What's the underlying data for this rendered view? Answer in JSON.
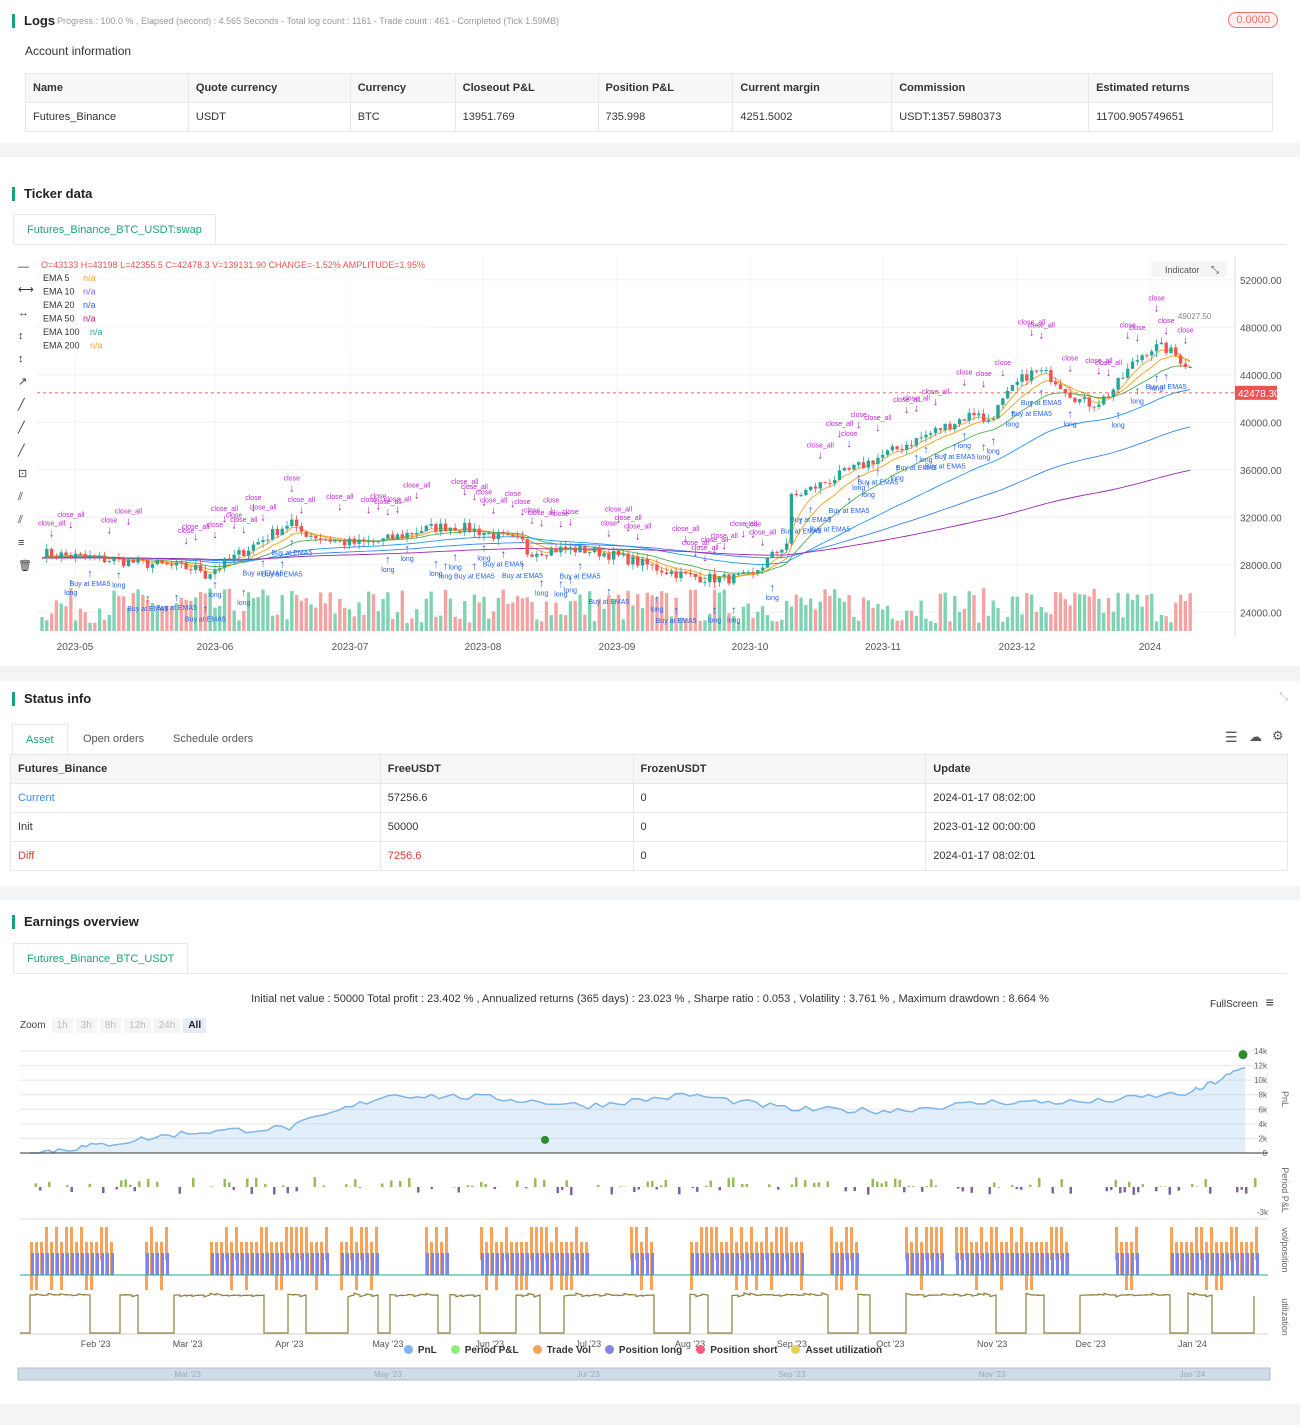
{
  "logs": {
    "title": "Logs",
    "progress": "Progress : 100.0 % , Elapsed (second) : 4.565  Seconds  - Total log count : 1161 - Trade count : 461 - Completed (Tick 1.59MB)",
    "badge": "0.0000",
    "account_title": "Account information",
    "headers": [
      "Name",
      "Quote currency",
      "Currency",
      "Closeout P&L",
      "Position P&L",
      "Current margin",
      "Commission",
      "Estimated returns"
    ],
    "row": [
      "Futures_Binance",
      "USDT",
      "BTC",
      "13951.769",
      "735.998",
      "4251.5002",
      "USDT:1357.5980373",
      "11700.905749651"
    ]
  },
  "ticker": {
    "title": "Ticker data",
    "tab": "Futures_Binance_BTC_USDT:swap",
    "ohlc": "O=43133 H=43198 L=42355.5 C=42478.3 V=139131.90 CHANGE=-1.52% AMPLITUDE=1.95%",
    "emas": [
      {
        "name": "EMA 5",
        "val": "n/a",
        "color": "#f7a336"
      },
      {
        "name": "EMA 10",
        "val": "n/a",
        "color": "#7b68ee"
      },
      {
        "name": "EMA 20",
        "val": "n/a",
        "color": "#2962ff"
      },
      {
        "name": "EMA 50",
        "val": "n/a",
        "color": "#c0147a"
      },
      {
        "name": "EMA 100",
        "val": "n/a",
        "color": "#26a69a"
      },
      {
        "name": "EMA 200",
        "val": "n/a",
        "color": "#f7a336"
      }
    ],
    "indicator_btn": "Indicator",
    "price_tag": "42478.30",
    "y_ticks": [
      "52000.00",
      "48000.00",
      "44000.00",
      "40000.00",
      "36000.00",
      "32000.00",
      "28000.00",
      "24000.00"
    ],
    "x_ticks": [
      "2023-05",
      "2023-06",
      "2023-07",
      "2023-08",
      "2023-09",
      "2023-10",
      "2023-11",
      "2023-12",
      "2024"
    ],
    "marker_labels": {
      "close": "close",
      "close_all": "close_all",
      "long": "long",
      "buy": "Buy at EMA5",
      "price_note": "49027.50"
    }
  },
  "status": {
    "title": "Status info",
    "tabs": [
      "Asset",
      "Open orders",
      "Schedule orders"
    ],
    "headers": [
      "Futures_Binance",
      "FreeUSDT",
      "FrozenUSDT",
      "Update"
    ],
    "rows": [
      [
        "Current",
        "57256.6",
        "0",
        "2024-01-17 08:02:00"
      ],
      [
        "Init",
        "50000",
        "0",
        "2023-01-12 00:00:00"
      ],
      [
        "Diff",
        "7256.6",
        "0",
        "2024-01-17 08:02:01"
      ]
    ]
  },
  "earnings": {
    "title": "Earnings overview",
    "tab": "Futures_Binance_BTC_USDT",
    "summary": "Initial net value : 50000 Total profit : 23.402 % , Annualized returns (365 days) : 23.023 % , Sharpe ratio : 0.053 , Volatility : 3.761 % , Maximum drawdown : 8.664 %",
    "fullscreen": "FullScreen",
    "zoom_label": "Zoom",
    "zoom_opts": [
      "1h",
      "3h",
      "8h",
      "12h",
      "24h",
      "All"
    ],
    "pnl_ticks": [
      "14k",
      "12k",
      "10k",
      "8k",
      "6k",
      "4k",
      "2k",
      "0"
    ],
    "ppl_tick": "-3k",
    "axis_labels": [
      "PnL",
      "Period P&L",
      "vol/position",
      "utilization"
    ],
    "x_ticks": [
      "Feb '23",
      "Mar '23",
      "Apr '23",
      "May '23",
      "Jun '23",
      "Jul '23",
      "Aug '23",
      "Sep '23",
      "Oct '23",
      "Nov '23",
      "Dec '23",
      "Jan '24"
    ],
    "nav_ticks": [
      "Mar '23",
      "May '23",
      "Jul '23",
      "Sep '23",
      "Nov '23",
      "Jan '24"
    ],
    "legend": [
      {
        "name": "PnL",
        "color": "#7cb5ec"
      },
      {
        "name": "Period P&L",
        "color": "#90ed7d"
      },
      {
        "name": "Trade Vol",
        "color": "#f7a35c"
      },
      {
        "name": "Position long",
        "color": "#8085e9"
      },
      {
        "name": "Position short",
        "color": "#f15c80"
      },
      {
        "name": "Asset utilization",
        "color": "#e4d354"
      }
    ]
  },
  "chart_data": {
    "type": "line",
    "title": "",
    "xlabel": "",
    "ylabel": "PnL",
    "x": [
      "2023-01-12",
      "2023-02-01",
      "2023-03-01",
      "2023-04-01",
      "2023-05-01",
      "2023-06-01",
      "2023-07-01",
      "2023-08-01",
      "2023-09-01",
      "2023-10-01",
      "2023-11-01",
      "2023-12-01",
      "2024-01-01",
      "2024-01-17"
    ],
    "series": [
      {
        "name": "PnL",
        "values": [
          0,
          1000,
          2800,
          3500,
          8000,
          7600,
          6500,
          8000,
          6000,
          5800,
          7000,
          7000,
          8300,
          11700
        ]
      }
    ],
    "ylim": [
      0,
      14000
    ]
  }
}
